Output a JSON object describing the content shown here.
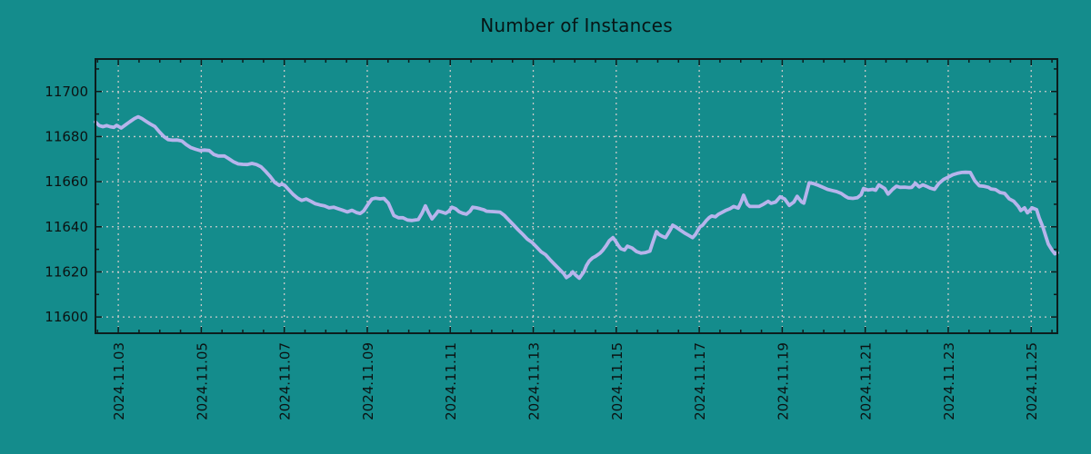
{
  "chart_data": {
    "type": "line",
    "title": "Number of Instances",
    "grid": {
      "show": true,
      "style": "dashed"
    },
    "legend": "none",
    "colors": {
      "background": "#148c8c",
      "line": "#b7b4ec",
      "grid": "#c9c9c9",
      "axis": "#0d1d1d",
      "tick_label": "#0b1212",
      "title": "#071616"
    },
    "x_axis": {
      "unit": "date (November 2024, fractional days)",
      "range_days": [
        2.45,
        25.63
      ],
      "major_tick_days": [
        3,
        5,
        7,
        9,
        11,
        13,
        15,
        17,
        19,
        21,
        23,
        25
      ],
      "tick_labels": [
        "2024.11.03",
        "2024.11.05",
        "2024.11.07",
        "2024.11.09",
        "2024.11.11",
        "2024.11.13",
        "2024.11.15",
        "2024.11.17",
        "2024.11.19",
        "2024.11.21",
        "2024.11.23",
        "2024.11.25"
      ],
      "minor_step_days": 0.5,
      "label_rotation_deg": -90
    },
    "y_axis": {
      "range": [
        11592.8,
        11714.4
      ],
      "major_ticks": [
        11600,
        11620,
        11640,
        11660,
        11680,
        11700
      ],
      "minor_step": 10
    },
    "series": [
      {
        "name": "instances",
        "points": [
          [
            2.45,
            11686.5
          ],
          [
            2.54,
            11684.9
          ],
          [
            2.63,
            11684.4
          ],
          [
            2.72,
            11684.9
          ],
          [
            2.8,
            11684.4
          ],
          [
            2.89,
            11684.1
          ],
          [
            2.96,
            11685.0
          ],
          [
            3.07,
            11683.8
          ],
          [
            3.18,
            11685.3
          ],
          [
            3.28,
            11686.6
          ],
          [
            3.39,
            11688.0
          ],
          [
            3.48,
            11688.8
          ],
          [
            3.57,
            11688.0
          ],
          [
            3.66,
            11686.9
          ],
          [
            3.77,
            11685.6
          ],
          [
            3.88,
            11684.5
          ],
          [
            3.99,
            11682.1
          ],
          [
            4.1,
            11680.0
          ],
          [
            4.2,
            11678.7
          ],
          [
            4.31,
            11678.4
          ],
          [
            4.42,
            11678.5
          ],
          [
            4.53,
            11678.1
          ],
          [
            4.64,
            11676.4
          ],
          [
            4.75,
            11675.1
          ],
          [
            4.86,
            11674.4
          ],
          [
            4.97,
            11673.8
          ],
          [
            5.08,
            11674.0
          ],
          [
            5.19,
            11673.8
          ],
          [
            5.3,
            11672.1
          ],
          [
            5.41,
            11671.4
          ],
          [
            5.56,
            11671.4
          ],
          [
            5.67,
            11670.1
          ],
          [
            5.78,
            11668.8
          ],
          [
            5.89,
            11667.9
          ],
          [
            6.0,
            11667.7
          ],
          [
            6.11,
            11667.6
          ],
          [
            6.22,
            11668.1
          ],
          [
            6.33,
            11667.6
          ],
          [
            6.44,
            11666.6
          ],
          [
            6.55,
            11664.6
          ],
          [
            6.66,
            11662.3
          ],
          [
            6.77,
            11659.7
          ],
          [
            6.88,
            11658.4
          ],
          [
            6.94,
            11659.0
          ],
          [
            7.01,
            11658.4
          ],
          [
            7.1,
            11656.6
          ],
          [
            7.21,
            11654.4
          ],
          [
            7.32,
            11652.7
          ],
          [
            7.42,
            11651.7
          ],
          [
            7.53,
            11652.3
          ],
          [
            7.64,
            11651.3
          ],
          [
            7.75,
            11650.2
          ],
          [
            7.86,
            11649.7
          ],
          [
            7.97,
            11649.3
          ],
          [
            8.08,
            11648.4
          ],
          [
            8.19,
            11648.7
          ],
          [
            8.3,
            11648.0
          ],
          [
            8.41,
            11647.3
          ],
          [
            8.52,
            11646.6
          ],
          [
            8.63,
            11647.3
          ],
          [
            8.74,
            11646.3
          ],
          [
            8.83,
            11645.9
          ],
          [
            8.91,
            11647.0
          ],
          [
            9.02,
            11650.0
          ],
          [
            9.11,
            11652.3
          ],
          [
            9.2,
            11652.7
          ],
          [
            9.31,
            11652.4
          ],
          [
            9.4,
            11652.6
          ],
          [
            9.51,
            11650.5
          ],
          [
            9.64,
            11645.0
          ],
          [
            9.75,
            11644.0
          ],
          [
            9.86,
            11644.0
          ],
          [
            9.97,
            11643.0
          ],
          [
            10.08,
            11642.8
          ],
          [
            10.16,
            11643.0
          ],
          [
            10.23,
            11643.2
          ],
          [
            10.32,
            11646.0
          ],
          [
            10.4,
            11649.3
          ],
          [
            10.47,
            11646.5
          ],
          [
            10.56,
            11643.5
          ],
          [
            10.65,
            11645.5
          ],
          [
            10.71,
            11647.0
          ],
          [
            10.8,
            11646.5
          ],
          [
            10.89,
            11646.0
          ],
          [
            10.97,
            11647.0
          ],
          [
            11.04,
            11648.7
          ],
          [
            11.13,
            11648.0
          ],
          [
            11.21,
            11646.7
          ],
          [
            11.3,
            11646.0
          ],
          [
            11.39,
            11645.6
          ],
          [
            11.48,
            11647.0
          ],
          [
            11.54,
            11648.7
          ],
          [
            11.63,
            11648.4
          ],
          [
            11.72,
            11648.0
          ],
          [
            11.81,
            11647.5
          ],
          [
            11.87,
            11646.9
          ],
          [
            11.96,
            11646.8
          ],
          [
            12.05,
            11646.7
          ],
          [
            12.13,
            11646.6
          ],
          [
            12.2,
            11646.5
          ],
          [
            12.31,
            11645.0
          ],
          [
            12.42,
            11642.8
          ],
          [
            12.53,
            11640.7
          ],
          [
            12.64,
            11638.6
          ],
          [
            12.75,
            11636.6
          ],
          [
            12.86,
            11634.5
          ],
          [
            12.97,
            11633.1
          ],
          [
            13.08,
            11631.0
          ],
          [
            13.19,
            11628.9
          ],
          [
            13.3,
            11627.6
          ],
          [
            13.4,
            11625.5
          ],
          [
            13.51,
            11623.4
          ],
          [
            13.62,
            11621.4
          ],
          [
            13.73,
            11619.3
          ],
          [
            13.8,
            11617.5
          ],
          [
            13.89,
            11618.6
          ],
          [
            13.95,
            11620.0
          ],
          [
            14.02,
            11618.6
          ],
          [
            14.11,
            11617.2
          ],
          [
            14.22,
            11620.0
          ],
          [
            14.28,
            11622.8
          ],
          [
            14.35,
            11624.8
          ],
          [
            14.43,
            11626.2
          ],
          [
            14.5,
            11626.9
          ],
          [
            14.61,
            11628.3
          ],
          [
            14.68,
            11629.7
          ],
          [
            14.76,
            11631.7
          ],
          [
            14.83,
            11633.8
          ],
          [
            14.92,
            11635.2
          ],
          [
            14.98,
            11633.8
          ],
          [
            15.05,
            11631.7
          ],
          [
            15.11,
            11630.3
          ],
          [
            15.2,
            11629.7
          ],
          [
            15.27,
            11631.4
          ],
          [
            15.38,
            11630.6
          ],
          [
            15.49,
            11629.0
          ],
          [
            15.6,
            11628.3
          ],
          [
            15.71,
            11628.6
          ],
          [
            15.81,
            11629.2
          ],
          [
            15.88,
            11633.1
          ],
          [
            15.97,
            11637.9
          ],
          [
            16.03,
            11636.6
          ],
          [
            16.1,
            11635.9
          ],
          [
            16.19,
            11635.2
          ],
          [
            16.3,
            11638.6
          ],
          [
            16.36,
            11640.7
          ],
          [
            16.43,
            11640.0
          ],
          [
            16.54,
            11638.6
          ],
          [
            16.65,
            11637.2
          ],
          [
            16.76,
            11636.1
          ],
          [
            16.84,
            11635.2
          ],
          [
            16.91,
            11636.6
          ],
          [
            16.95,
            11637.9
          ],
          [
            17.02,
            11640.0
          ],
          [
            17.08,
            11640.7
          ],
          [
            17.17,
            11642.8
          ],
          [
            17.24,
            11644.1
          ],
          [
            17.3,
            11644.8
          ],
          [
            17.39,
            11644.4
          ],
          [
            17.46,
            11645.5
          ],
          [
            17.57,
            11646.6
          ],
          [
            17.63,
            11647.2
          ],
          [
            17.74,
            11648.0
          ],
          [
            17.83,
            11649.0
          ],
          [
            17.94,
            11648.3
          ],
          [
            18.01,
            11651.0
          ],
          [
            18.07,
            11654.0
          ],
          [
            18.16,
            11650.0
          ],
          [
            18.22,
            11649.0
          ],
          [
            18.33,
            11649.0
          ],
          [
            18.44,
            11649.0
          ],
          [
            18.55,
            11650.0
          ],
          [
            18.66,
            11651.3
          ],
          [
            18.73,
            11650.4
          ],
          [
            18.84,
            11651.0
          ],
          [
            18.95,
            11653.3
          ],
          [
            19.06,
            11652.3
          ],
          [
            19.17,
            11649.5
          ],
          [
            19.28,
            11651.0
          ],
          [
            19.36,
            11653.5
          ],
          [
            19.47,
            11651.0
          ],
          [
            19.52,
            11650.5
          ],
          [
            19.65,
            11659.5
          ],
          [
            19.76,
            11659.1
          ],
          [
            19.87,
            11658.4
          ],
          [
            19.98,
            11657.5
          ],
          [
            20.09,
            11656.6
          ],
          [
            20.2,
            11656.1
          ],
          [
            20.31,
            11655.6
          ],
          [
            20.42,
            11654.8
          ],
          [
            20.52,
            11653.5
          ],
          [
            20.59,
            11652.8
          ],
          [
            20.7,
            11652.6
          ],
          [
            20.81,
            11652.9
          ],
          [
            20.9,
            11654.2
          ],
          [
            20.96,
            11657.0
          ],
          [
            21.07,
            11656.3
          ],
          [
            21.18,
            11656.6
          ],
          [
            21.25,
            11656.2
          ],
          [
            21.33,
            11658.6
          ],
          [
            21.4,
            11657.8
          ],
          [
            21.47,
            11657.0
          ],
          [
            21.55,
            11654.5
          ],
          [
            21.66,
            11656.6
          ],
          [
            21.75,
            11658.0
          ],
          [
            21.84,
            11657.5
          ],
          [
            21.95,
            11657.6
          ],
          [
            22.06,
            11657.4
          ],
          [
            22.12,
            11657.5
          ],
          [
            22.21,
            11659.3
          ],
          [
            22.3,
            11657.7
          ],
          [
            22.39,
            11658.6
          ],
          [
            22.47,
            11658.0
          ],
          [
            22.56,
            11657.2
          ],
          [
            22.67,
            11656.6
          ],
          [
            22.78,
            11659.3
          ],
          [
            22.89,
            11661.0
          ],
          [
            23.0,
            11662.0
          ],
          [
            23.11,
            11663.1
          ],
          [
            23.22,
            11663.7
          ],
          [
            23.33,
            11664.1
          ],
          [
            23.42,
            11664.2
          ],
          [
            23.53,
            11664.1
          ],
          [
            23.64,
            11660.4
          ],
          [
            23.75,
            11658.2
          ],
          [
            23.86,
            11658.0
          ],
          [
            23.97,
            11657.5
          ],
          [
            24.03,
            11656.8
          ],
          [
            24.14,
            11656.5
          ],
          [
            24.25,
            11655.2
          ],
          [
            24.36,
            11654.8
          ],
          [
            24.47,
            11652.4
          ],
          [
            24.58,
            11651.3
          ],
          [
            24.69,
            11649.0
          ],
          [
            24.75,
            11647.2
          ],
          [
            24.84,
            11648.4
          ],
          [
            24.91,
            11646.2
          ],
          [
            25.02,
            11648.4
          ],
          [
            25.13,
            11647.6
          ],
          [
            25.19,
            11644.1
          ],
          [
            25.28,
            11640.0
          ],
          [
            25.35,
            11635.9
          ],
          [
            25.41,
            11632.4
          ],
          [
            25.5,
            11629.7
          ],
          [
            25.57,
            11628.0
          ],
          [
            25.63,
            11628.5
          ]
        ]
      }
    ]
  }
}
